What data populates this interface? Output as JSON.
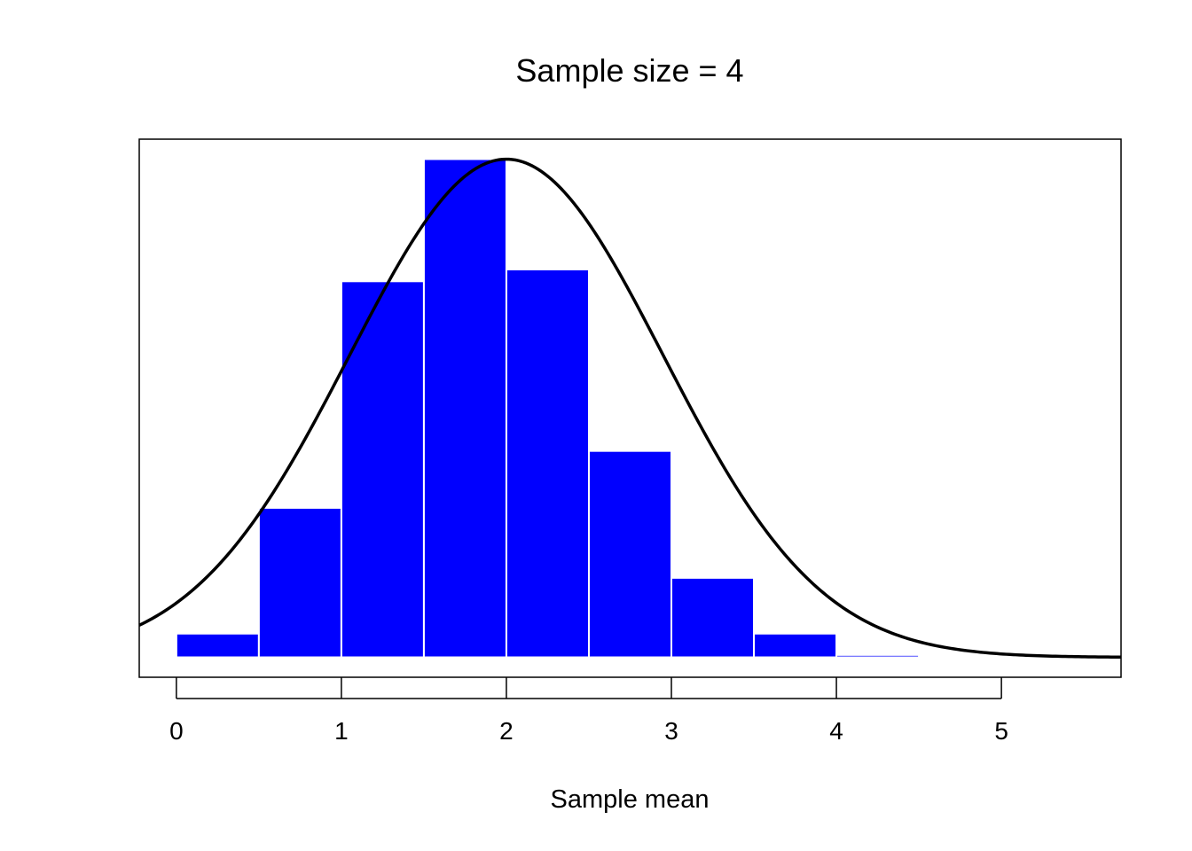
{
  "chart_data": {
    "type": "bar",
    "title": "Sample size = 4",
    "xlabel": "Sample mean",
    "ylabel": "",
    "xlim": [
      -0.225,
      5.725
    ],
    "ylim": [
      -0.0168,
      0.4368
    ],
    "bins": [
      {
        "x0": 0.0,
        "x1": 0.5,
        "value": 0.02
      },
      {
        "x0": 0.5,
        "x1": 1.0,
        "value": 0.126
      },
      {
        "x0": 1.0,
        "x1": 1.5,
        "value": 0.317
      },
      {
        "x0": 1.5,
        "x1": 2.0,
        "value": 0.42
      },
      {
        "x0": 2.0,
        "x1": 2.5,
        "value": 0.327
      },
      {
        "x0": 2.5,
        "x1": 3.0,
        "value": 0.174
      },
      {
        "x0": 3.0,
        "x1": 3.5,
        "value": 0.067
      },
      {
        "x0": 3.5,
        "x1": 4.0,
        "value": 0.02
      },
      {
        "x0": 4.0,
        "x1": 4.5,
        "value": 0.002
      }
    ],
    "x_ticks": [
      {
        "value": 0,
        "label": "0"
      },
      {
        "value": 1,
        "label": "1"
      },
      {
        "value": 2,
        "label": "2"
      },
      {
        "value": 3,
        "label": "3"
      },
      {
        "value": 4,
        "label": "4"
      },
      {
        "value": 5,
        "label": "5"
      }
    ],
    "curve": {
      "kind": "normal-density",
      "mean": 2.0,
      "sd": 0.95,
      "x_range": [
        -0.225,
        5.725
      ]
    },
    "bar_color": "#0000ff",
    "bar_edge_color": "#ffffff",
    "curve_color": "#000000",
    "grid": false
  }
}
